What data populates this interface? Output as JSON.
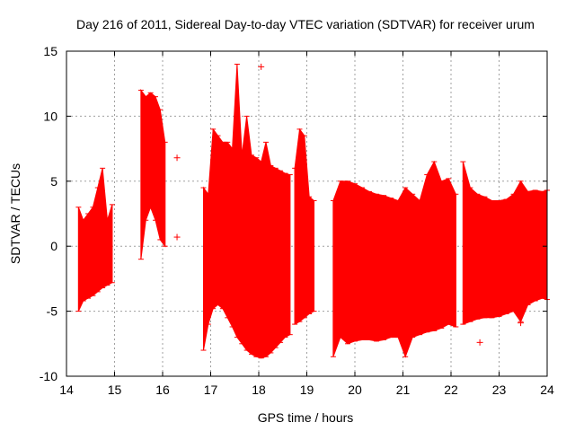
{
  "chart_data": {
    "type": "errorbar",
    "title": "Day 216 of 2011, Sidereal Day-to-day VTEC variation (SDTVAR) for receiver urum",
    "xlabel": "GPS time / hours",
    "ylabel": "SDTVAR / TECUs",
    "xlim": [
      14,
      24
    ],
    "ylim": [
      -10,
      15
    ],
    "xticks": [
      14,
      15,
      16,
      17,
      18,
      19,
      20,
      21,
      22,
      23,
      24
    ],
    "yticks": [
      -10,
      -5,
      0,
      5,
      10,
      15
    ],
    "grid": true,
    "color": "#ff0000",
    "segments": [
      {
        "name": "segment-1",
        "x": [
          14.25,
          14.35,
          14.45,
          14.55,
          14.65,
          14.75,
          14.85,
          14.95
        ],
        "upper": [
          3.0,
          2.0,
          2.5,
          3.0,
          4.5,
          6.0,
          2.0,
          3.2
        ],
        "lower": [
          -5.0,
          -4.2,
          -4.0,
          -3.8,
          -3.5,
          -3.2,
          -3.0,
          -2.8
        ]
      },
      {
        "name": "segment-2",
        "x": [
          15.55,
          15.65,
          15.75,
          15.85,
          15.95,
          16.05
        ],
        "upper": [
          12.0,
          11.5,
          11.8,
          11.5,
          10.5,
          8.0
        ],
        "lower": [
          -1.0,
          2.0,
          3.0,
          2.0,
          0.5,
          0.0
        ]
      },
      {
        "name": "segment-3",
        "x": [
          16.85,
          16.95,
          17.05,
          17.15,
          17.25,
          17.35,
          17.45,
          17.55,
          17.65,
          17.75,
          17.85,
          17.95,
          18.05,
          18.15,
          18.25,
          18.35,
          18.45,
          18.55,
          18.65
        ],
        "upper": [
          4.5,
          4.0,
          9.0,
          8.5,
          8.0,
          8.0,
          7.5,
          14.0,
          7.0,
          10.0,
          7.0,
          6.8,
          6.5,
          8.0,
          6.2,
          6.0,
          5.8,
          5.6,
          5.5
        ],
        "lower": [
          -8.0,
          -6.0,
          -4.8,
          -4.5,
          -4.8,
          -5.5,
          -6.2,
          -7.0,
          -7.5,
          -8.0,
          -8.3,
          -8.5,
          -8.6,
          -8.5,
          -8.2,
          -7.8,
          -7.4,
          -7.0,
          -6.8
        ]
      },
      {
        "name": "segment-4",
        "x": [
          18.75,
          18.85,
          18.95,
          19.05,
          19.15
        ],
        "upper": [
          6.0,
          9.0,
          8.5,
          3.8,
          3.5
        ],
        "lower": [
          -6.0,
          -5.8,
          -5.5,
          -5.2,
          -5.0
        ]
      },
      {
        "name": "segment-5",
        "x": [
          19.55,
          19.7,
          19.85,
          20.0,
          20.15,
          20.3,
          20.45,
          20.6,
          20.75,
          20.9,
          21.05,
          21.2,
          21.35,
          21.5,
          21.65,
          21.8,
          21.95,
          22.1
        ],
        "upper": [
          3.5,
          5.0,
          5.0,
          4.8,
          4.5,
          4.2,
          4.0,
          3.9,
          3.7,
          3.5,
          4.5,
          4.0,
          3.5,
          5.5,
          6.5,
          5.0,
          5.2,
          4.0
        ],
        "lower": [
          -8.5,
          -7.0,
          -7.5,
          -7.3,
          -7.2,
          -7.2,
          -7.3,
          -7.2,
          -7.0,
          -7.0,
          -8.5,
          -7.0,
          -6.8,
          -6.6,
          -6.5,
          -6.3,
          -6.0,
          -6.2
        ]
      },
      {
        "name": "segment-6",
        "x": [
          22.25,
          22.4,
          22.55,
          22.7,
          22.85,
          23.0,
          23.15,
          23.3,
          23.45,
          23.6,
          23.75,
          23.9,
          24.0
        ],
        "upper": [
          6.5,
          4.5,
          4.0,
          3.8,
          3.5,
          3.5,
          3.6,
          4.0,
          5.0,
          4.2,
          4.3,
          4.2,
          4.3
        ],
        "lower": [
          -6.0,
          -5.8,
          -5.6,
          -5.5,
          -5.5,
          -5.4,
          -5.2,
          -5.0,
          -5.8,
          -4.5,
          -4.2,
          -4.0,
          -4.1
        ]
      }
    ],
    "outliers": [
      {
        "x": 16.3,
        "y": 6.8
      },
      {
        "x": 16.3,
        "y": 0.7
      },
      {
        "x": 18.05,
        "y": 13.8
      },
      {
        "x": 22.6,
        "y": -7.4
      },
      {
        "x": 23.45,
        "y": -5.9
      }
    ]
  }
}
